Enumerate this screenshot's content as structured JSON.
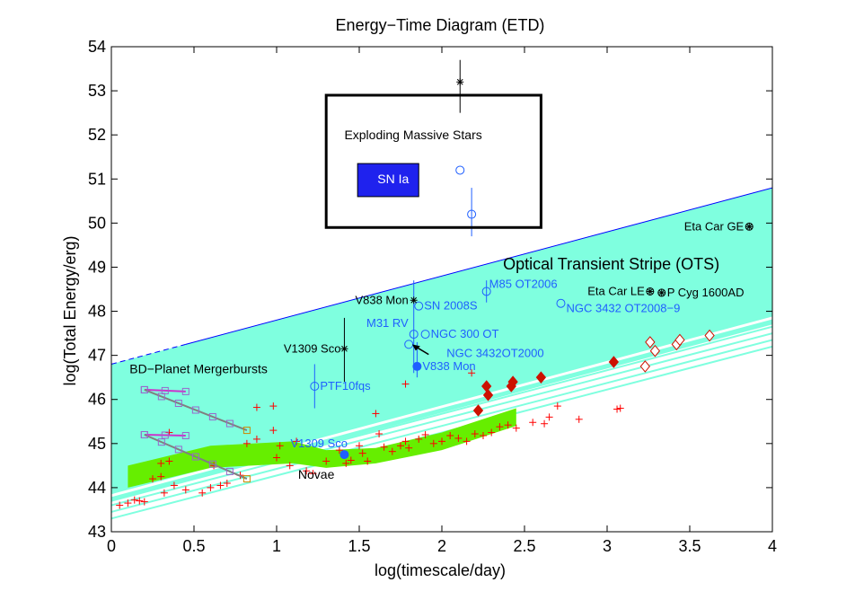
{
  "chart_data": {
    "type": "scatter",
    "title": "Energy−Time Diagram (ETD)",
    "xlabel": "log(timescale/day)",
    "ylabel": "log(Total Energy/erg)",
    "xlim": [
      0,
      4
    ],
    "ylim": [
      43,
      54
    ],
    "xticks": [
      "0",
      "0.5",
      "1",
      "1.5",
      "2",
      "2.5",
      "3",
      "3.5",
      "4"
    ],
    "xtick_values": [
      0,
      0.5,
      1,
      1.5,
      2,
      2.5,
      3,
      3.5,
      4
    ],
    "yticks": [
      "43",
      "44",
      "45",
      "46",
      "47",
      "48",
      "49",
      "50",
      "51",
      "52",
      "53",
      "54"
    ],
    "ytick_values": [
      43,
      44,
      45,
      46,
      47,
      48,
      49,
      50,
      51,
      52,
      53,
      54
    ],
    "grid": false,
    "colors": {
      "ots_fill": "#7fffdf",
      "ots_edge": "#0000ff",
      "novae_band": "#66ee00",
      "cv_markers": "#ff0000",
      "labels_blue": "#1f5fff",
      "sn_ia_box": "#1f22ee",
      "planet_square": "#9966cc",
      "planet_mag": "#cc33cc",
      "planet_orange": "#cc8800",
      "diamond": "#cc1100"
    },
    "regions": {
      "ots_label": "Optical Transient Stripe (OTS)",
      "bd_planet_label": "BD−Planet Mergerbursts",
      "novae_label": "Novae",
      "exploding_label": "Exploding Massive Stars",
      "sn_ia_label": "SN Ia",
      "ots_band": {
        "x_start": 0,
        "x_end": 4,
        "upper_y0": 46.8,
        "upper_y1": 50.8,
        "lower_y0": 43.7,
        "lower_y1": 47.7
      },
      "novae_band": {
        "x": [
          0.1,
          0.6,
          1.1,
          1.3,
          1.6,
          2.0,
          2.45
        ],
        "upper": [
          44.5,
          44.95,
          45.05,
          44.85,
          44.9,
          45.25,
          45.8
        ],
        "lower": [
          44.0,
          44.45,
          44.55,
          44.45,
          44.55,
          44.85,
          45.4
        ]
      },
      "cyan_lines": [
        {
          "y0": 43.3,
          "y1": 47.2
        },
        {
          "y0": 43.45,
          "y1": 47.35
        },
        {
          "y0": 43.6,
          "y1": 47.5
        },
        {
          "y0": 43.7,
          "y1": 47.65
        }
      ],
      "explosion_box": {
        "x": [
          1.3,
          2.6
        ],
        "y": [
          49.9,
          52.9
        ]
      }
    },
    "labeled_objects": [
      {
        "name": "Eta Car GE",
        "x": 3.86,
        "y": 49.92,
        "marker": "asterisk-circle",
        "color": "#000000"
      },
      {
        "name": "Eta Car LE",
        "x": 3.26,
        "y": 48.45,
        "marker": "asterisk-circle",
        "color": "#000000"
      },
      {
        "name": "P Cyg 1600AD",
        "x": 3.33,
        "y": 48.42,
        "marker": "asterisk-circle",
        "color": "#000000"
      },
      {
        "name": "M85 OT2006",
        "x": 2.27,
        "y": 48.45,
        "marker": "circle",
        "color": "#1f5fff"
      },
      {
        "name": "NGC 3432 OT2008−9",
        "x": 2.72,
        "y": 48.18,
        "marker": "circle",
        "color": "#1f5fff"
      },
      {
        "name": "SN 2008S",
        "x": 1.86,
        "y": 48.12,
        "marker": "circle",
        "color": "#1f5fff"
      },
      {
        "name": "V838 Mon",
        "x": 1.83,
        "y": 48.25,
        "marker": "star",
        "color": "#000000"
      },
      {
        "name": "M31 RV",
        "x": 1.83,
        "y": 47.48,
        "marker": "circle",
        "color": "#1f5fff"
      },
      {
        "name": "NGC 300 OT",
        "x": 1.9,
        "y": 47.48,
        "marker": "circle",
        "color": "#1f5fff"
      },
      {
        "name": "NGC 3432OT2000",
        "x": 1.8,
        "y": 47.25,
        "marker": "circle",
        "color": "#1f5fff"
      },
      {
        "name": "V838 Mon",
        "x": 1.85,
        "y": 46.75,
        "marker": "filled-circle",
        "color": "#1f5fff"
      },
      {
        "name": "V1309 Sco",
        "x": 1.41,
        "y": 47.15,
        "marker": "star",
        "color": "#000000"
      },
      {
        "name": "PTF10fqs",
        "x": 1.23,
        "y": 46.3,
        "marker": "circle",
        "color": "#1f5fff"
      },
      {
        "name": "V1309 Sco",
        "x": 1.41,
        "y": 44.75,
        "marker": "filled-circle",
        "color": "#1f5fff"
      }
    ],
    "unlabeled_objects": [
      {
        "x": 2.11,
        "y": 53.2,
        "marker": "star",
        "color": "#000000",
        "err_y": [
          52.5,
          53.7
        ]
      },
      {
        "x": 2.11,
        "y": 51.2,
        "marker": "circle",
        "color": "#1f5fff"
      },
      {
        "x": 2.18,
        "y": 50.2,
        "marker": "circle",
        "color": "#1f5fff",
        "err_y": [
          49.7,
          50.8
        ]
      }
    ],
    "cv_points": {
      "x": [
        0.05,
        0.1,
        0.14,
        0.17,
        0.2,
        0.25,
        0.3,
        0.32,
        0.35,
        0.38,
        0.45,
        0.55,
        0.6,
        0.62,
        0.66,
        0.7,
        0.78,
        0.82,
        0.88,
        0.98,
        1.0,
        1.02,
        1.08,
        1.12,
        1.18,
        1.22,
        1.3,
        1.38,
        1.42,
        1.45,
        1.5,
        1.52,
        1.55,
        1.6,
        1.65,
        1.7,
        1.75,
        1.78,
        1.8,
        1.86,
        1.9,
        1.95,
        2.0,
        2.05,
        2.1,
        2.15,
        2.2,
        2.25,
        2.3,
        2.35,
        2.4,
        2.45,
        2.55,
        2.62,
        2.65,
        2.7,
        2.83,
        3.06,
        3.08,
        0.3,
        0.35,
        0.88,
        0.98,
        1.62,
        1.78,
        2.18
      ],
      "y": [
        43.6,
        43.65,
        43.72,
        43.7,
        43.68,
        44.2,
        44.55,
        43.88,
        45.25,
        44.05,
        43.95,
        43.88,
        44.0,
        44.5,
        44.05,
        44.1,
        44.28,
        45.0,
        45.82,
        45.85,
        44.68,
        44.95,
        44.5,
        45.05,
        44.38,
        44.32,
        44.6,
        44.85,
        44.55,
        44.62,
        44.95,
        44.78,
        44.6,
        45.68,
        44.92,
        44.82,
        44.95,
        45.05,
        44.9,
        45.1,
        45.2,
        45.0,
        45.05,
        45.18,
        45.12,
        45.05,
        45.22,
        45.18,
        45.25,
        45.38,
        45.42,
        45.35,
        45.48,
        45.45,
        45.6,
        45.85,
        45.55,
        45.78,
        45.8,
        44.25,
        44.6,
        45.1,
        45.3,
        45.22,
        46.35,
        46.6
      ],
      "marker": "plus",
      "color": "#ff0000"
    },
    "filled_diamonds": [
      {
        "x": 2.22,
        "y": 45.75
      },
      {
        "x": 2.27,
        "y": 46.3
      },
      {
        "x": 2.28,
        "y": 46.1
      },
      {
        "x": 2.42,
        "y": 46.3
      },
      {
        "x": 2.43,
        "y": 46.4
      },
      {
        "x": 2.6,
        "y": 46.5
      },
      {
        "x": 3.04,
        "y": 46.85
      }
    ],
    "open_diamonds": [
      {
        "x": 3.23,
        "y": 46.75
      },
      {
        "x": 3.26,
        "y": 47.3
      },
      {
        "x": 3.29,
        "y": 47.1
      },
      {
        "x": 3.42,
        "y": 47.25
      },
      {
        "x": 3.44,
        "y": 47.35
      },
      {
        "x": 3.62,
        "y": 47.45
      }
    ],
    "bd_planet_tracks": [
      {
        "x": [
          0.2,
          0.45
        ],
        "y": [
          46.22,
          46.18
        ],
        "color": "#cc33cc"
      },
      {
        "x": [
          0.2,
          0.45
        ],
        "y": [
          45.2,
          45.18
        ],
        "color": "#cc33cc"
      },
      {
        "x": [
          0.2,
          0.82
        ],
        "y": [
          46.22,
          45.3
        ],
        "color": "#808080"
      },
      {
        "x": [
          0.2,
          0.82
        ],
        "y": [
          45.2,
          44.2
        ],
        "color": "#808080"
      }
    ],
    "error_bars": [
      {
        "x": 1.41,
        "y": [
          46.4,
          47.85
        ]
      },
      {
        "x": 1.23,
        "y": [
          45.8,
          46.8
        ]
      },
      {
        "x": 1.83,
        "y": [
          46.6,
          48.7
        ]
      },
      {
        "x": 1.85,
        "y": [
          46.5,
          47.3
        ]
      },
      {
        "x": 2.27,
        "y": [
          48.2,
          48.7
        ]
      }
    ]
  }
}
